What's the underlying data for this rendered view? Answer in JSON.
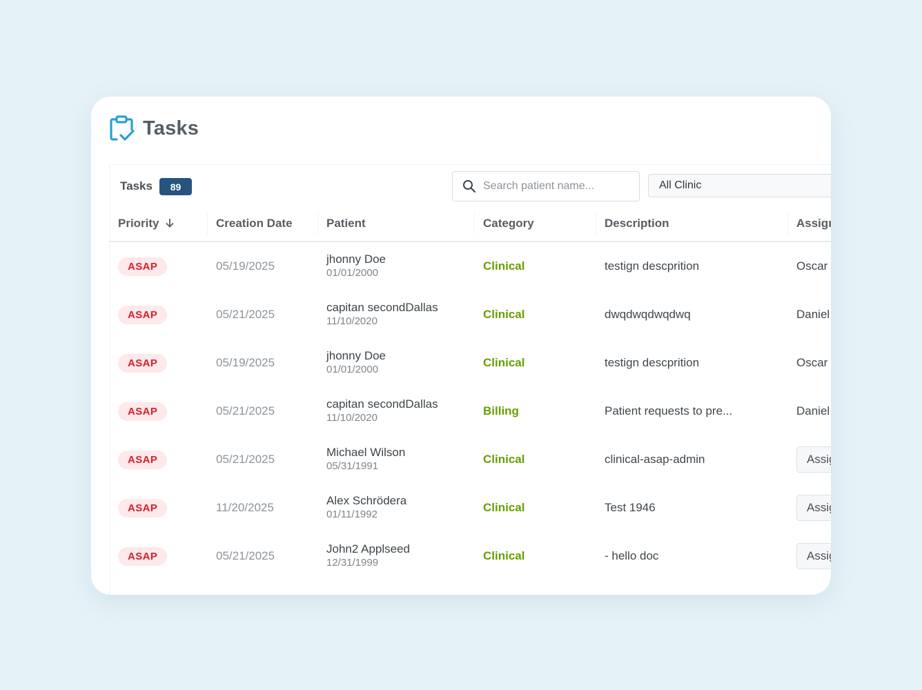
{
  "header": {
    "title": "Tasks"
  },
  "toolbar": {
    "tasks_label": "Tasks",
    "tasks_count": "89",
    "search_placeholder": "Search patient name...",
    "clinic_filter": "All Clinic"
  },
  "table": {
    "columns": {
      "priority": "Priority",
      "creation_date": "Creation Date",
      "patient": "Patient",
      "category": "Category",
      "description": "Description",
      "assigned": "Assign"
    },
    "rows": [
      {
        "priority": "ASAP",
        "date": "05/19/2025",
        "patient_name": "jhonny Doe",
        "patient_dob": "01/01/2000",
        "category": "Clinical",
        "description": "testign descprition",
        "assigned": "Oscar"
      },
      {
        "priority": "ASAP",
        "date": "05/21/2025",
        "patient_name": "capitan secondDallas",
        "patient_dob": "11/10/2020",
        "category": "Clinical",
        "description": "dwqdwqdwqdwq",
        "assigned": "Daniel"
      },
      {
        "priority": "ASAP",
        "date": "05/19/2025",
        "patient_name": "jhonny Doe",
        "patient_dob": "01/01/2000",
        "category": "Clinical",
        "description": "testign descprition",
        "assigned": "Oscar"
      },
      {
        "priority": "ASAP",
        "date": "05/21/2025",
        "patient_name": "capitan secondDallas",
        "patient_dob": "11/10/2020",
        "category": "Billing",
        "description": "Patient requests to pre...",
        "assigned": "Daniel"
      },
      {
        "priority": "ASAP",
        "date": "05/21/2025",
        "patient_name": "Michael Wilson",
        "patient_dob": "05/31/1991",
        "category": "Clinical",
        "description": "clinical-asap-admin",
        "assign_button": "Assign"
      },
      {
        "priority": "ASAP",
        "date": "11/20/2025",
        "patient_name": "Alex Schrödera",
        "patient_dob": "01/11/1992",
        "category": "Clinical",
        "description": "Test 1946",
        "assign_button": "Assign"
      },
      {
        "priority": "ASAP",
        "date": "05/21/2025",
        "patient_name": "John2 Applseed",
        "patient_dob": "12/31/1999",
        "category": "Clinical",
        "description": "- hello doc",
        "assign_button": "Assign"
      }
    ]
  },
  "colors": {
    "background": "#e5f2f8",
    "badge_asap_bg": "#fde8ea",
    "badge_asap_text": "#d4212b",
    "category_text": "#66a000",
    "count_badge": "#27537f",
    "icon_blue": "#2a9fd6"
  },
  "icons": {
    "header": "clipboard-check-icon",
    "search": "search-icon",
    "sort": "arrow-down-icon"
  }
}
